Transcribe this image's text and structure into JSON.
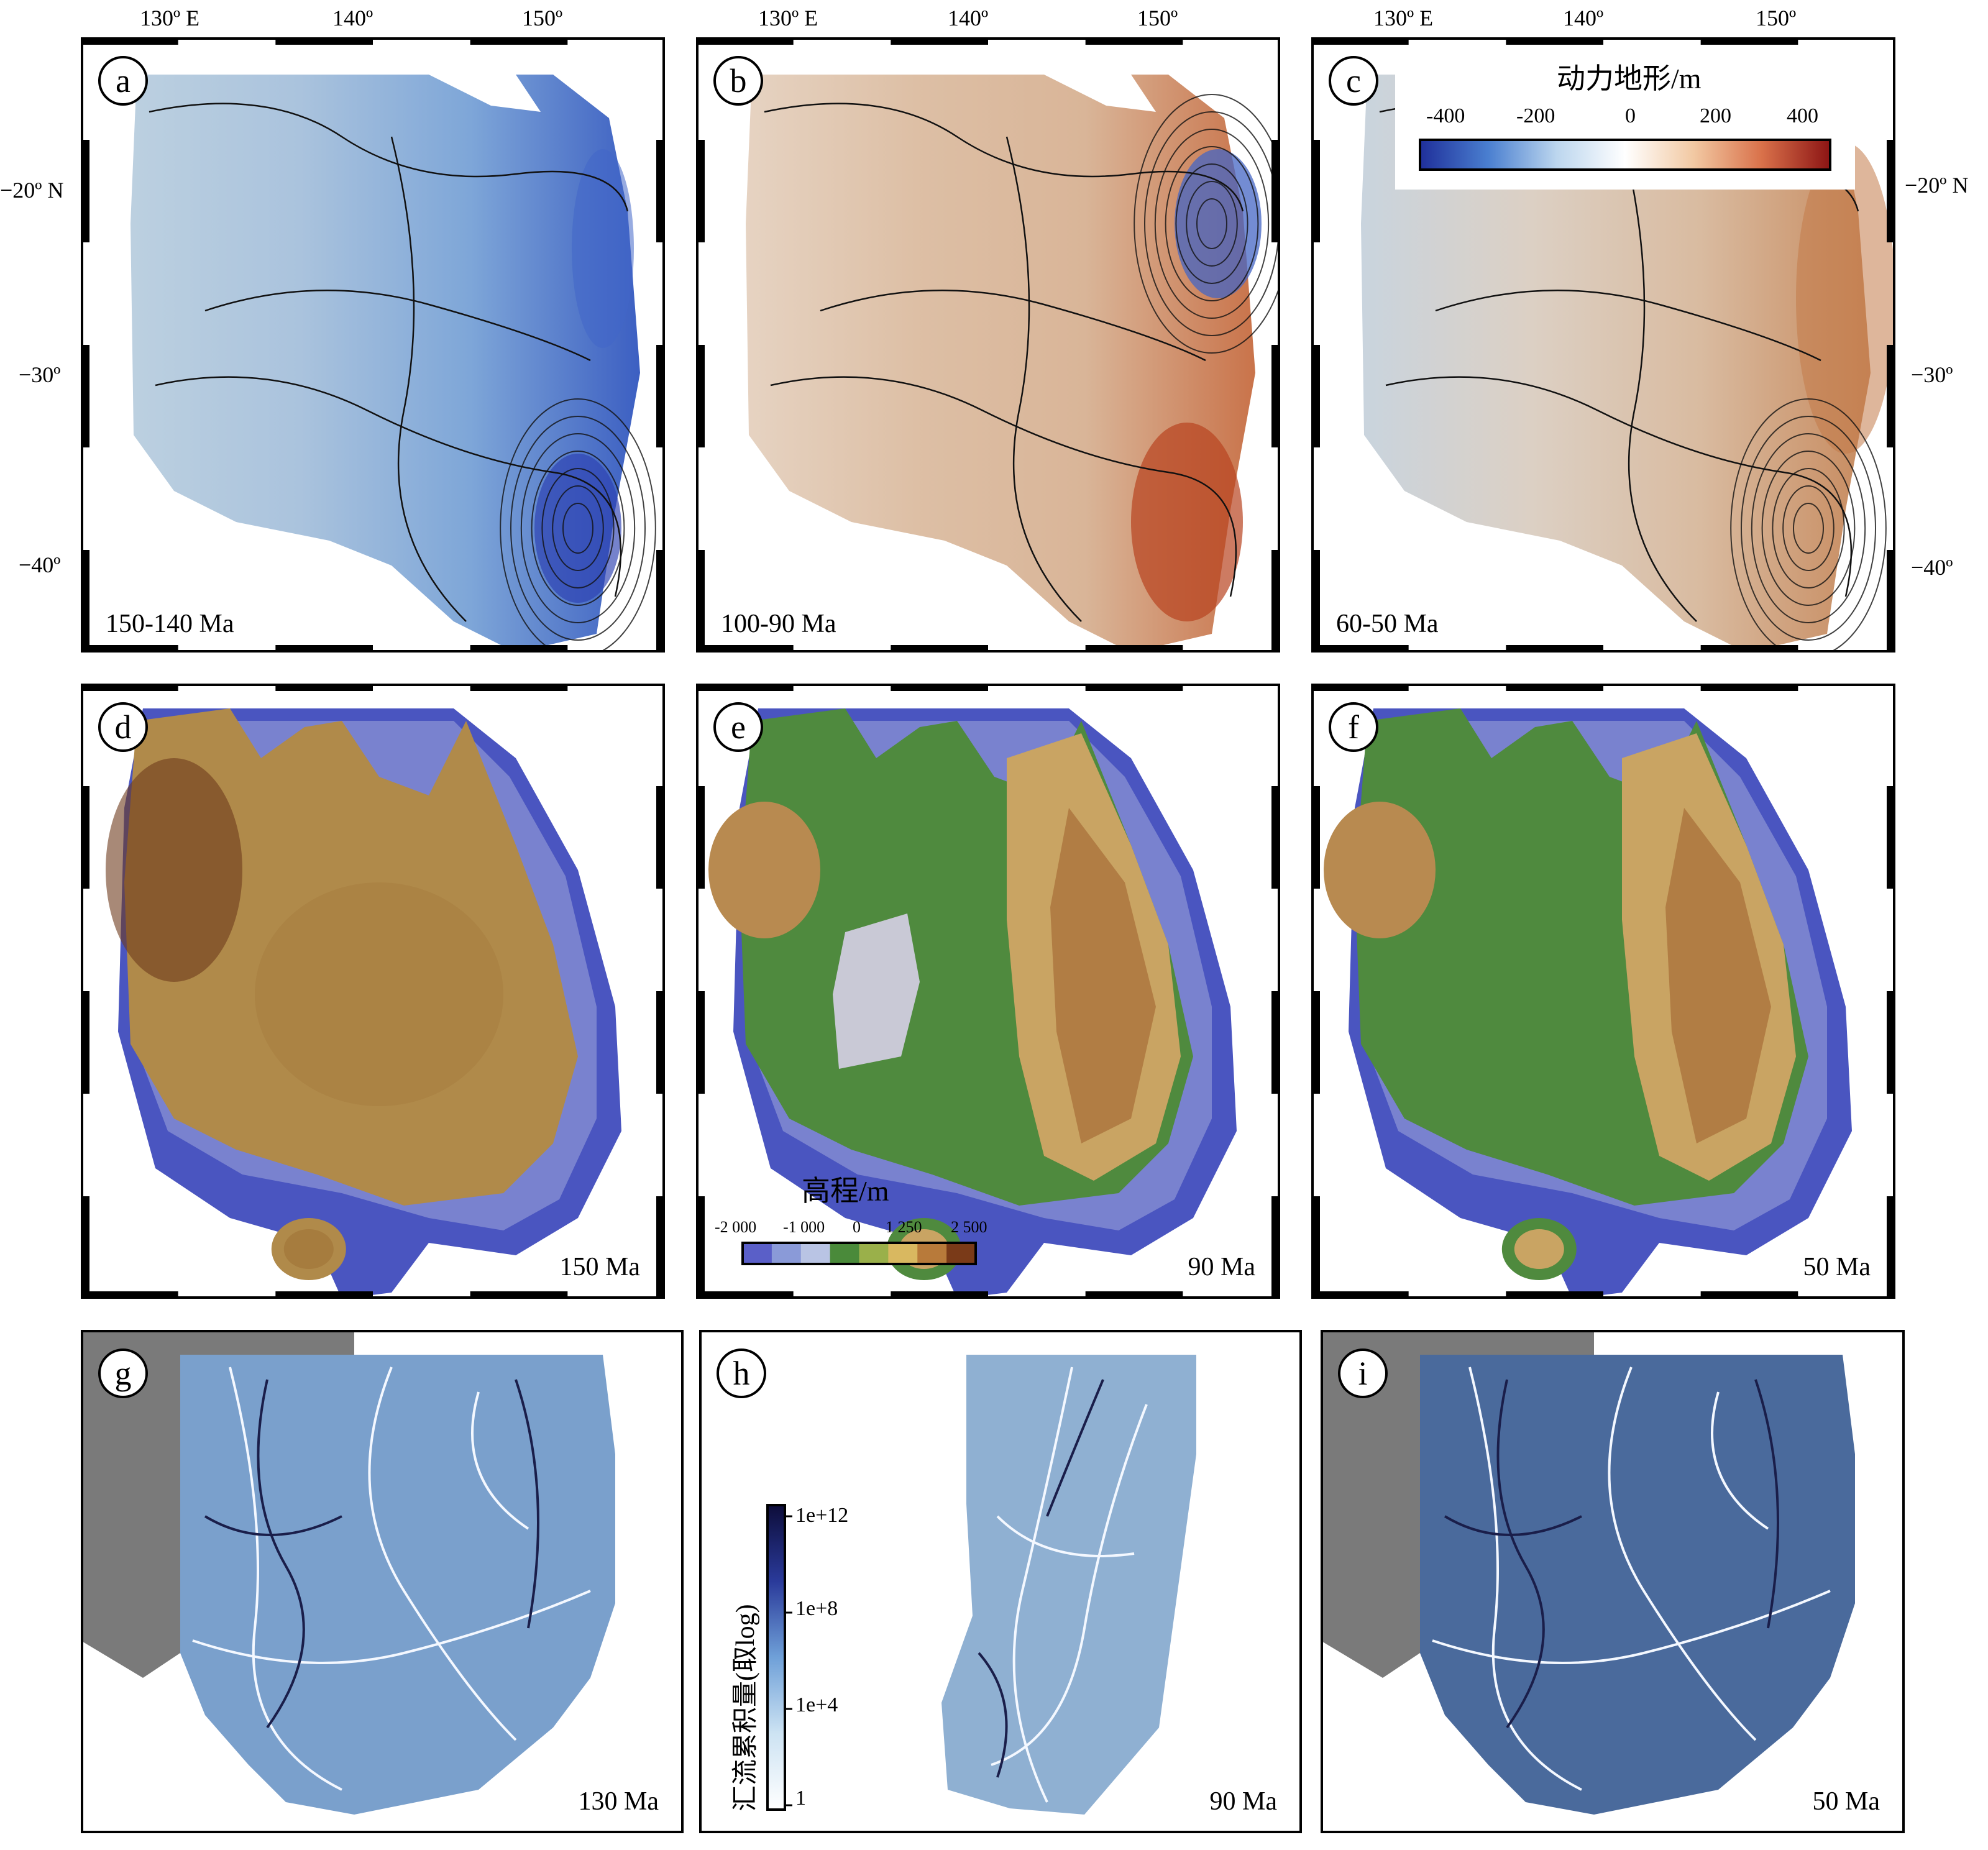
{
  "axes": {
    "top_lon_labels": [
      "130º E",
      "140º",
      "150º"
    ],
    "left_lat_labels": [
      "−20º N",
      "−30º",
      "−40º"
    ],
    "right_lat_labels": [
      "−20º N",
      "−30º",
      "−40º"
    ]
  },
  "panels": [
    {
      "letter": "a",
      "age": "150-140 Ma",
      "kind": "dynamic",
      "tone": "blue"
    },
    {
      "letter": "b",
      "age": "100-90 Ma",
      "kind": "dynamic",
      "tone": "tan"
    },
    {
      "letter": "c",
      "age": "60-50 Ma",
      "kind": "dynamic",
      "tone": "neutral"
    },
    {
      "letter": "d",
      "age": "150 Ma",
      "kind": "elevation",
      "tone": "brown"
    },
    {
      "letter": "e",
      "age": "90 Ma",
      "kind": "elevation",
      "tone": "green"
    },
    {
      "letter": "f",
      "age": "50 Ma",
      "kind": "elevation",
      "tone": "green"
    },
    {
      "letter": "g",
      "age": "130 Ma",
      "kind": "drainage",
      "tone": "speckle"
    },
    {
      "letter": "h",
      "age": "90 Ma",
      "kind": "drainage",
      "tone": "light"
    },
    {
      "letter": "i",
      "age": "50 Ma",
      "kind": "drainage",
      "tone": "dark"
    }
  ],
  "legend_dynamic": {
    "title": "动力地形/m",
    "ticks": [
      "-400",
      "-200",
      "0",
      "200",
      "400"
    ],
    "colors": [
      "#1f2f9a",
      "#4a7fd0",
      "#bcd6ee",
      "#ffffff",
      "#f2c9a3",
      "#d9714a",
      "#8c1414"
    ]
  },
  "legend_elevation": {
    "title": "高程/m",
    "ticks": [
      "-2 000",
      "-1 000",
      "0",
      "1 250",
      "2 500"
    ],
    "colors": [
      "#5a5fc8",
      "#8a9ad8",
      "#b9c4e4",
      "#4a8a3a",
      "#9ab04a",
      "#d9b860",
      "#b87a3a",
      "#7a3a18"
    ]
  },
  "legend_flow": {
    "title": "汇流累积量(取log)",
    "ticks": [
      "1e+12",
      "1e+8",
      "1e+4",
      "1"
    ],
    "colors": [
      "#0d0d3a",
      "#2a3a9a",
      "#6fa0d8",
      "#cde3f3",
      "#ffffff"
    ]
  },
  "colors": {
    "ocean": "#4a55c0",
    "shelf": "#9aa0d8",
    "land_brown": "#b08a4a",
    "land_green": "#4f8a3e",
    "drain_blue": "#7aa0cc",
    "drain_gray": "#6b6b6b"
  }
}
